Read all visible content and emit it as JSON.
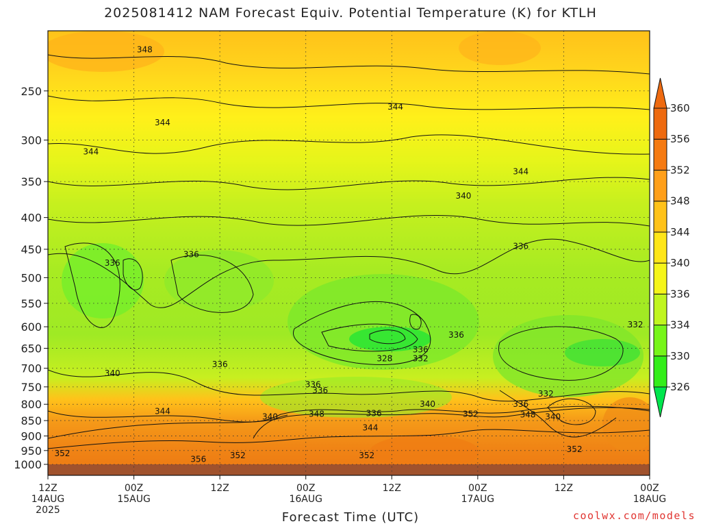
{
  "title": "2025081412 NAM Forecast Equiv. Potential Temperature (K) for KTLH",
  "credit": "coolwx.com/models",
  "chart_data": {
    "type": "heatmap",
    "title": "2025081412 NAM Forecast Equiv. Potential Temperature (K) for KTLH",
    "xlabel": "Forecast Time (UTC)",
    "ylabel": "",
    "x_ticks": [
      {
        "hour": 0,
        "lines": [
          "12Z",
          "14AUG",
          "2025"
        ]
      },
      {
        "hour": 12,
        "lines": [
          "00Z",
          "15AUG"
        ]
      },
      {
        "hour": 24,
        "lines": [
          "12Z"
        ]
      },
      {
        "hour": 36,
        "lines": [
          "00Z",
          "16AUG"
        ]
      },
      {
        "hour": 48,
        "lines": [
          "12Z"
        ]
      },
      {
        "hour": 60,
        "lines": [
          "00Z",
          "17AUG"
        ]
      },
      {
        "hour": 72,
        "lines": [
          "12Z"
        ]
      },
      {
        "hour": 84,
        "lines": [
          "00Z",
          "18AUG"
        ]
      }
    ],
    "xlim": [
      0,
      84
    ],
    "y_ticks": [
      250,
      300,
      350,
      400,
      450,
      500,
      550,
      600,
      650,
      700,
      750,
      800,
      850,
      900,
      950,
      1000
    ],
    "ylim": [
      200,
      1000
    ],
    "y_scale": "log",
    "grid": true,
    "colorbar": {
      "levels": [
        326,
        330,
        334,
        336,
        340,
        344,
        348,
        352,
        356,
        360
      ],
      "colors": [
        "#00e64d",
        "#33ee1a",
        "#77f51a",
        "#c0f51f",
        "#f5f51a",
        "#ffe619",
        "#ffc21a",
        "#ff9f1a",
        "#f57a12",
        "#ee6a10"
      ]
    },
    "contour_labels": [
      {
        "text": "348",
        "hour": 13.5,
        "p": 215
      },
      {
        "text": "344",
        "hour": 16,
        "p": 282
      },
      {
        "text": "344",
        "hour": 6,
        "p": 314
      },
      {
        "text": "344",
        "hour": 48.5,
        "p": 266
      },
      {
        "text": "344",
        "hour": 66,
        "p": 338
      },
      {
        "text": "340",
        "hour": 58,
        "p": 370
      },
      {
        "text": "336",
        "hour": 9,
        "p": 475
      },
      {
        "text": "336",
        "hour": 20,
        "p": 460
      },
      {
        "text": "336",
        "hour": 66,
        "p": 446
      },
      {
        "text": "336",
        "hour": 57,
        "p": 620
      },
      {
        "text": "336",
        "hour": 52,
        "p": 655
      },
      {
        "text": "336",
        "hour": 24,
        "p": 692
      },
      {
        "text": "328",
        "hour": 47,
        "p": 677
      },
      {
        "text": "332",
        "hour": 52,
        "p": 677
      },
      {
        "text": "332",
        "hour": 82,
        "p": 597
      },
      {
        "text": "340",
        "hour": 9,
        "p": 715
      },
      {
        "text": "336",
        "hour": 37,
        "p": 746
      },
      {
        "text": "336",
        "hour": 38,
        "p": 762
      },
      {
        "text": "332",
        "hour": 69.5,
        "p": 772
      },
      {
        "text": "336",
        "hour": 66,
        "p": 802
      },
      {
        "text": "340",
        "hour": 53,
        "p": 802
      },
      {
        "text": "344",
        "hour": 16,
        "p": 823
      },
      {
        "text": "340",
        "hour": 31,
        "p": 840
      },
      {
        "text": "348",
        "hour": 37.5,
        "p": 832
      },
      {
        "text": "336",
        "hour": 45.5,
        "p": 830
      },
      {
        "text": "352",
        "hour": 59,
        "p": 832
      },
      {
        "text": "348",
        "hour": 67,
        "p": 834
      },
      {
        "text": "340",
        "hour": 70.5,
        "p": 840
      },
      {
        "text": "344",
        "hour": 45,
        "p": 875
      },
      {
        "text": "352",
        "hour": 2,
        "p": 963
      },
      {
        "text": "356",
        "hour": 21,
        "p": 983
      },
      {
        "text": "352",
        "hour": 26.5,
        "p": 970
      },
      {
        "text": "352",
        "hour": 44.5,
        "p": 970
      },
      {
        "text": "352",
        "hour": 73.5,
        "p": 948
      }
    ]
  }
}
